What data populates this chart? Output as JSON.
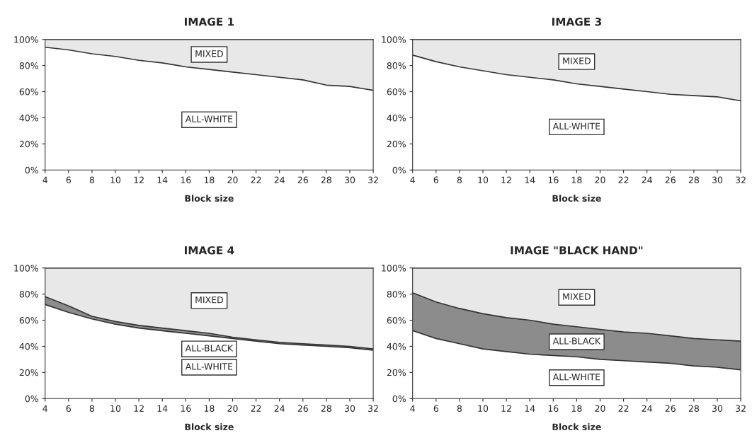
{
  "chart_data": [
    {
      "type": "area",
      "title": "IMAGE 1",
      "xlabel": "Block size",
      "stacked": true,
      "x": [
        4,
        6,
        8,
        10,
        12,
        14,
        16,
        18,
        20,
        22,
        24,
        26,
        28,
        30,
        32
      ],
      "xlim": [
        4,
        32
      ],
      "xticks": [
        4,
        6,
        8,
        10,
        12,
        14,
        16,
        18,
        20,
        22,
        24,
        26,
        28,
        30,
        32
      ],
      "ylim": [
        0,
        100
      ],
      "yticks": [
        {
          "value": 0,
          "label": "0%"
        },
        {
          "value": 20,
          "label": "20%"
        },
        {
          "value": 40,
          "label": "40%"
        },
        {
          "value": 60,
          "label": "60%"
        },
        {
          "value": 80,
          "label": "80%"
        },
        {
          "value": 100,
          "label": "100%"
        }
      ],
      "series": [
        {
          "name": "ALL-WHITE",
          "color": "#ffffff",
          "values": [
            94,
            92,
            89,
            87,
            84,
            82,
            79,
            77,
            75,
            73,
            71,
            69,
            65,
            64,
            61
          ]
        },
        {
          "name": "MIXED",
          "color": "#e8e8e8",
          "values": [
            6,
            8,
            11,
            13,
            16,
            18,
            21,
            23,
            25,
            27,
            29,
            31,
            35,
            36,
            39
          ]
        }
      ]
    },
    {
      "type": "area",
      "title": "IMAGE 3",
      "xlabel": "Block size",
      "stacked": true,
      "x": [
        4,
        6,
        8,
        10,
        12,
        14,
        16,
        18,
        20,
        22,
        24,
        26,
        28,
        30,
        32
      ],
      "xlim": [
        4,
        32
      ],
      "xticks": [
        4,
        6,
        8,
        10,
        12,
        14,
        16,
        18,
        20,
        22,
        24,
        26,
        28,
        30,
        32
      ],
      "ylim": [
        0,
        100
      ],
      "yticks": [
        {
          "value": 0,
          "label": "0%"
        },
        {
          "value": 20,
          "label": "20%"
        },
        {
          "value": 40,
          "label": "40%"
        },
        {
          "value": 60,
          "label": "60%"
        },
        {
          "value": 80,
          "label": "80%"
        },
        {
          "value": 100,
          "label": "100%"
        }
      ],
      "series": [
        {
          "name": "ALL-WHITE",
          "color": "#ffffff",
          "values": [
            88,
            83,
            79,
            76,
            73,
            71,
            69,
            66,
            64,
            62,
            60,
            58,
            57,
            56,
            53
          ]
        },
        {
          "name": "MIXED",
          "color": "#e8e8e8",
          "values": [
            12,
            17,
            21,
            24,
            27,
            29,
            31,
            34,
            36,
            38,
            40,
            42,
            43,
            44,
            47
          ]
        }
      ]
    },
    {
      "type": "area",
      "title": "IMAGE 4",
      "xlabel": "Block size",
      "stacked": true,
      "x": [
        4,
        6,
        8,
        10,
        12,
        14,
        16,
        18,
        20,
        22,
        24,
        26,
        28,
        30,
        32
      ],
      "xlim": [
        4,
        32
      ],
      "xticks": [
        4,
        6,
        8,
        10,
        12,
        14,
        16,
        18,
        20,
        22,
        24,
        26,
        28,
        30,
        32
      ],
      "ylim": [
        0,
        100
      ],
      "yticks": [
        {
          "value": 0,
          "label": "0%"
        },
        {
          "value": 20,
          "label": "20%"
        },
        {
          "value": 40,
          "label": "40%"
        },
        {
          "value": 60,
          "label": "60%"
        },
        {
          "value": 80,
          "label": "80%"
        },
        {
          "value": 100,
          "label": "100%"
        }
      ],
      "series": [
        {
          "name": "ALL-WHITE",
          "color": "#ffffff",
          "values": [
            72,
            66,
            61,
            57,
            54,
            52,
            50,
            48,
            46,
            44,
            42,
            41,
            40,
            39,
            37
          ]
        },
        {
          "name": "ALL-BLACK",
          "color": "#8c8c8c",
          "values": [
            6,
            5,
            2,
            2,
            2,
            2,
            2,
            2,
            1,
            1,
            1,
            1,
            1,
            1,
            1
          ]
        },
        {
          "name": "MIXED",
          "color": "#e8e8e8",
          "values": [
            22,
            29,
            37,
            41,
            44,
            46,
            48,
            50,
            53,
            55,
            57,
            58,
            59,
            60,
            62
          ]
        }
      ]
    },
    {
      "type": "area",
      "title": "IMAGE \"BLACK HAND\"",
      "xlabel": "Block size",
      "stacked": true,
      "x": [
        4,
        6,
        8,
        10,
        12,
        14,
        16,
        18,
        20,
        22,
        24,
        26,
        28,
        30,
        32
      ],
      "xlim": [
        4,
        32
      ],
      "xticks": [
        4,
        6,
        8,
        10,
        12,
        14,
        16,
        18,
        20,
        22,
        24,
        26,
        28,
        30,
        32
      ],
      "ylim": [
        0,
        100
      ],
      "yticks": [
        {
          "value": 0,
          "label": "0%"
        },
        {
          "value": 20,
          "label": "20%"
        },
        {
          "value": 40,
          "label": "40%"
        },
        {
          "value": 60,
          "label": "60%"
        },
        {
          "value": 80,
          "label": "80%"
        },
        {
          "value": 100,
          "label": "100%"
        }
      ],
      "series": [
        {
          "name": "ALL-WHITE",
          "color": "#ffffff",
          "values": [
            52,
            46,
            42,
            38,
            36,
            34,
            33,
            32,
            30,
            29,
            28,
            27,
            25,
            24,
            22
          ]
        },
        {
          "name": "ALL-BLACK",
          "color": "#8c8c8c",
          "values": [
            29,
            28,
            27,
            27,
            26,
            26,
            24,
            23,
            23,
            22,
            22,
            21,
            21,
            21,
            22
          ]
        },
        {
          "name": "MIXED",
          "color": "#e8e8e8",
          "values": [
            19,
            26,
            31,
            35,
            38,
            40,
            43,
            45,
            47,
            49,
            50,
            52,
            54,
            55,
            56
          ]
        }
      ]
    }
  ]
}
